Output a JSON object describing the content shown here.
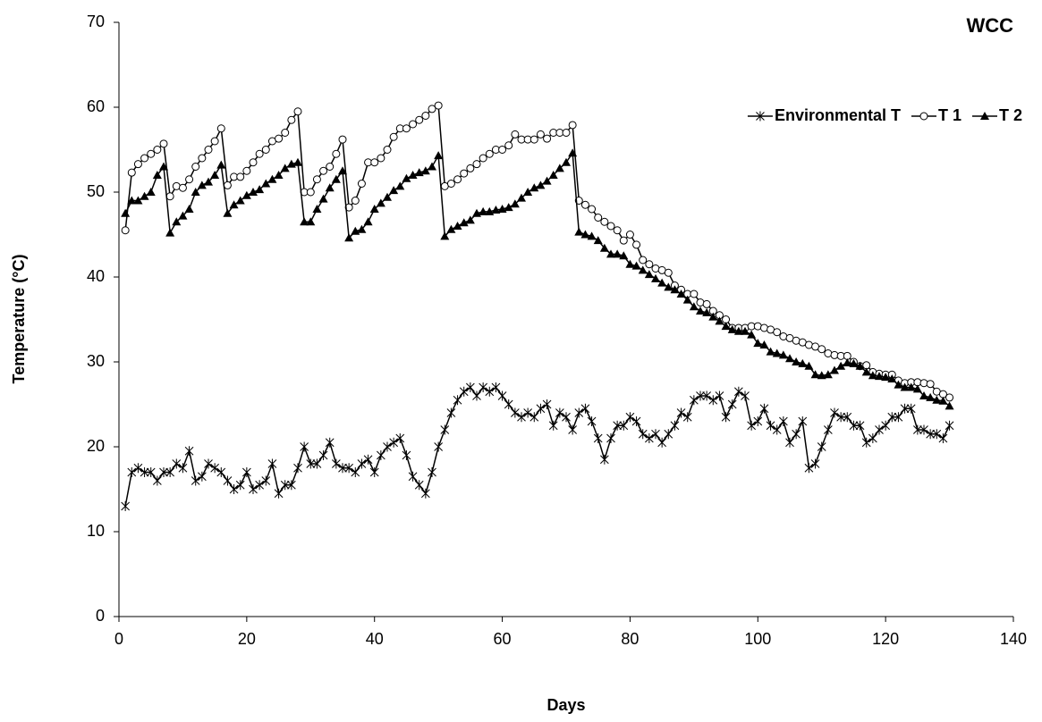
{
  "chart_data": {
    "type": "line",
    "title": "WCC",
    "x_label": "Days",
    "y_label": "Temperature (°C)",
    "xlim": [
      0,
      140
    ],
    "xticks": [
      0,
      20,
      40,
      60,
      80,
      100,
      120,
      140
    ],
    "ylim": [
      0,
      70
    ],
    "yticks": [
      0,
      10,
      20,
      30,
      40,
      50,
      60,
      70
    ],
    "grid": false,
    "legend": "top-right",
    "x": [
      1,
      2,
      3,
      4,
      5,
      6,
      7,
      8,
      9,
      10,
      11,
      12,
      13,
      14,
      15,
      16,
      17,
      18,
      19,
      20,
      21,
      22,
      23,
      24,
      25,
      26,
      27,
      28,
      29,
      30,
      31,
      32,
      33,
      34,
      35,
      36,
      37,
      38,
      39,
      40,
      41,
      42,
      43,
      44,
      45,
      46,
      47,
      48,
      49,
      50,
      51,
      52,
      53,
      54,
      55,
      56,
      57,
      58,
      59,
      60,
      61,
      62,
      63,
      64,
      65,
      66,
      67,
      68,
      69,
      70,
      71,
      72,
      73,
      74,
      75,
      76,
      77,
      78,
      79,
      80,
      81,
      82,
      83,
      84,
      85,
      86,
      87,
      88,
      89,
      90,
      91,
      92,
      93,
      94,
      95,
      96,
      97,
      98,
      99,
      100,
      101,
      102,
      103,
      104,
      105,
      106,
      107,
      108,
      109,
      110,
      111,
      112,
      113,
      114,
      115,
      116,
      117,
      118,
      119,
      120,
      121,
      122,
      123,
      124,
      125,
      126,
      127,
      128,
      129,
      130
    ],
    "series": [
      {
        "name": "Environmental T",
        "color": "#000000",
        "marker": "star",
        "values": [
          13,
          17,
          17.5,
          17,
          17,
          16,
          17,
          17,
          18,
          17.5,
          19.5,
          16,
          16.5,
          18,
          17.5,
          17,
          16,
          15,
          15.5,
          17,
          15,
          15.5,
          16,
          18,
          14.5,
          15.5,
          15.5,
          17.5,
          20,
          18,
          18,
          19,
          20.5,
          18,
          17.5,
          17.5,
          17,
          18,
          18.5,
          17,
          19,
          20,
          20.5,
          21,
          19,
          16.5,
          15.5,
          14.5,
          17,
          20,
          22,
          24,
          25.5,
          26.5,
          27,
          26,
          27,
          26.5,
          27,
          26,
          25,
          24,
          23.5,
          24,
          23.5,
          24.5,
          25,
          22.5,
          24,
          23.5,
          22,
          24,
          24.5,
          23,
          21,
          18.5,
          21,
          22.5,
          22.5,
          23.5,
          23,
          21.5,
          21,
          21.5,
          20.5,
          21.5,
          22.5,
          24,
          23.5,
          25.5,
          26,
          26,
          25.5,
          26,
          23.5,
          25,
          26.5,
          26,
          22.5,
          23,
          24.5,
          22.5,
          22,
          23,
          20.5,
          21.5,
          23,
          17.5,
          18,
          20,
          22,
          24,
          23.5,
          23.5,
          22.5,
          22.5,
          20.5,
          21,
          22,
          22.5,
          23.5,
          23.5,
          24.5,
          24.5,
          22,
          22,
          21.5,
          21.5,
          21,
          22.5
        ]
      },
      {
        "name": "T 1",
        "color": "#000000",
        "marker": "circle",
        "values": [
          45.5,
          52.3,
          53.3,
          54,
          54.5,
          55,
          55.7,
          49.5,
          50.7,
          50.5,
          51.5,
          53,
          54,
          55,
          56,
          57.5,
          50.8,
          51.8,
          51.8,
          52.5,
          53.5,
          54.5,
          55,
          56,
          56.3,
          57,
          58.5,
          59.5,
          50,
          50,
          51.5,
          52.5,
          53,
          54.5,
          56.2,
          48.2,
          49,
          51,
          53.5,
          53.5,
          54,
          55,
          56.5,
          57.5,
          57.5,
          58,
          58.5,
          59,
          59.8,
          60.2,
          50.7,
          51,
          51.5,
          52.2,
          52.8,
          53.3,
          54,
          54.5,
          55,
          55,
          55.5,
          56.8,
          56.2,
          56.2,
          56.2,
          56.8,
          56.3,
          57,
          57,
          57,
          57.9,
          49,
          48.5,
          48,
          47,
          46.5,
          46,
          45.5,
          44.3,
          45,
          43.8,
          42,
          41.5,
          41,
          40.8,
          40.5,
          39,
          38.5,
          38,
          38,
          37,
          36.8,
          36,
          35.5,
          35,
          34,
          34,
          34,
          34.2,
          34.2,
          34,
          33.8,
          33.5,
          33,
          32.8,
          32.5,
          32.3,
          32,
          31.8,
          31.5,
          31,
          30.8,
          30.7,
          30.7,
          30,
          29.5,
          29.6,
          28.8,
          28.6,
          28.5,
          28.5,
          27.8,
          27.5,
          27.6,
          27.6,
          27.5,
          27.4,
          26.5,
          26.2,
          25.8
        ]
      },
      {
        "name": "T 2",
        "color": "#000000",
        "marker": "triangle",
        "values": [
          47.5,
          49,
          49,
          49.5,
          50,
          52,
          53,
          45.2,
          46.5,
          47.2,
          48,
          50,
          50.8,
          51.2,
          52,
          53.2,
          47.5,
          48.5,
          49,
          49.6,
          50,
          50.3,
          51,
          51.5,
          52,
          52.8,
          53.3,
          53.5,
          46.5,
          46.5,
          48,
          49.2,
          50.5,
          51.5,
          52.5,
          44.6,
          45.4,
          45.6,
          46.5,
          48,
          48.7,
          49.4,
          50.2,
          50.7,
          51.6,
          52,
          52.3,
          52.5,
          53,
          54.3,
          44.8,
          45.6,
          46,
          46.4,
          46.7,
          47.5,
          47.7,
          47.7,
          47.9,
          48,
          48.2,
          48.6,
          49.3,
          50,
          50.5,
          50.8,
          51.3,
          52,
          52.8,
          53.5,
          54.6,
          45.3,
          45,
          44.8,
          44.3,
          43.4,
          42.7,
          42.7,
          42.5,
          41.5,
          41.3,
          40.8,
          40.3,
          39.8,
          39.3,
          38.8,
          38.5,
          38,
          37.3,
          36.5,
          36,
          35.8,
          35.3,
          34.8,
          34.2,
          33.8,
          33.6,
          33.6,
          33.2,
          32.2,
          32,
          31.2,
          31,
          30.8,
          30.4,
          30,
          29.8,
          29.5,
          28.5,
          28.4,
          28.5,
          29,
          29.5,
          29.9,
          29.8,
          29.5,
          28.8,
          28.4,
          28.3,
          28.2,
          28,
          27.3,
          27,
          27,
          26.8,
          26,
          25.8,
          25.5,
          25.4,
          24.8
        ]
      }
    ]
  }
}
